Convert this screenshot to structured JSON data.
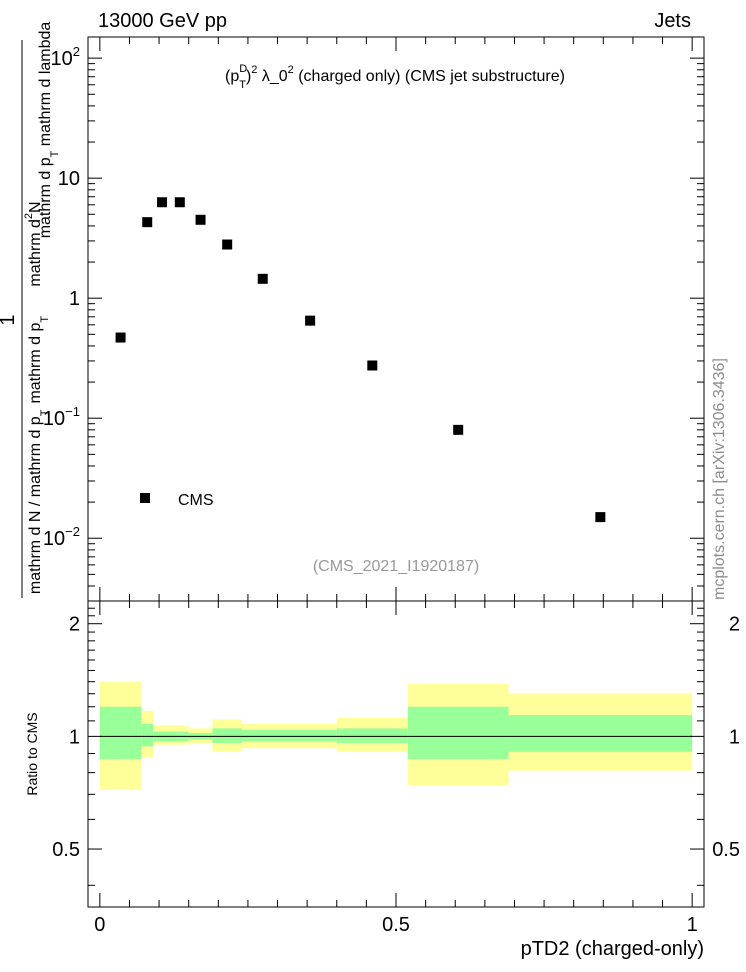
{
  "header": {
    "left": "13000 GeV pp",
    "right": "Jets"
  },
  "side_label": "mcplots.cern.ch [arXiv:1306.3436]",
  "analysis_label": "(CMS_2021_I1920187)",
  "chart_data": [
    {
      "type": "scatter",
      "title_parts": {
        "p": "(p",
        "sup1": "D",
        "sub1": "T",
        "close": ")",
        "sup2": "2",
        "lambda": " λ_0",
        "sup3": "2",
        "rest": " (charged only) (CMS jet substructure)"
      },
      "ylabel_parts": {
        "num": "mathrm d",
        "num_sup": "2",
        "num_rest": "N",
        "den1": "mathrm d p",
        "den1_sub": "T",
        "den2": " mathrm d lambda",
        "left_num": "1",
        "left_den1": "mathrm d N / mathrm d p",
        "left_den1_sub": "T",
        "left_den2": "mathrm d p",
        "left_den2_sub": "T"
      },
      "y_scale": "log",
      "ylim": [
        0.003,
        150
      ],
      "xlim": [
        -0.02,
        1.02
      ],
      "y_ticks": [
        {
          "value": 100,
          "base": "10",
          "exp": "2"
        },
        {
          "value": 10,
          "label": "10"
        },
        {
          "value": 1,
          "label": "1"
        },
        {
          "value": 0.1,
          "base": "10",
          "exp": "−1"
        },
        {
          "value": 0.01,
          "base": "10",
          "exp": "−2"
        }
      ],
      "legend": {
        "entries": [
          "CMS"
        ],
        "placement": "bottom-left"
      },
      "series": [
        {
          "name": "CMS",
          "marker": "square",
          "x": [
            0.035,
            0.08,
            0.105,
            0.135,
            0.17,
            0.215,
            0.275,
            0.355,
            0.46,
            0.605,
            0.845
          ],
          "y": [
            0.47,
            4.3,
            6.3,
            6.3,
            4.5,
            2.8,
            1.45,
            0.65,
            0.275,
            0.08,
            0.015
          ]
        }
      ]
    },
    {
      "type": "area",
      "ylabel": "Ratio to CMS",
      "xlabel": "pTD2 (charged-only)",
      "xlim": [
        -0.02,
        1.02
      ],
      "ylim": [
        0.35,
        2.3
      ],
      "x_ticks": [
        {
          "value": 0,
          "label": "0"
        },
        {
          "value": 0.5,
          "label": "0.5"
        },
        {
          "value": 1,
          "label": "1"
        }
      ],
      "y_ticks": [
        {
          "value": 2,
          "label": "2"
        },
        {
          "value": 1,
          "label": "1"
        },
        {
          "value": 0.5,
          "label": "0.5"
        }
      ],
      "reference_line": 1,
      "bands": {
        "bins": [
          {
            "x0": 0.0,
            "x1": 0.07,
            "stat_lo": 0.87,
            "stat_hi": 1.2,
            "tot_lo": 0.72,
            "tot_hi": 1.4
          },
          {
            "x0": 0.07,
            "x1": 0.09,
            "stat_lo": 0.94,
            "stat_hi": 1.08,
            "tot_lo": 0.88,
            "tot_hi": 1.17
          },
          {
            "x0": 0.09,
            "x1": 0.15,
            "stat_lo": 0.97,
            "stat_hi": 1.03,
            "tot_lo": 0.95,
            "tot_hi": 1.07
          },
          {
            "x0": 0.15,
            "x1": 0.19,
            "stat_lo": 0.98,
            "stat_hi": 1.02,
            "tot_lo": 0.96,
            "tot_hi": 1.05
          },
          {
            "x0": 0.19,
            "x1": 0.24,
            "stat_lo": 0.96,
            "stat_hi": 1.05,
            "tot_lo": 0.91,
            "tot_hi": 1.11
          },
          {
            "x0": 0.24,
            "x1": 0.4,
            "stat_lo": 0.97,
            "stat_hi": 1.04,
            "tot_lo": 0.93,
            "tot_hi": 1.08
          },
          {
            "x0": 0.4,
            "x1": 0.52,
            "stat_lo": 0.96,
            "stat_hi": 1.05,
            "tot_lo": 0.91,
            "tot_hi": 1.12
          },
          {
            "x0": 0.52,
            "x1": 0.69,
            "stat_lo": 0.87,
            "stat_hi": 1.2,
            "tot_lo": 0.74,
            "tot_hi": 1.38
          },
          {
            "x0": 0.69,
            "x1": 1.0,
            "stat_lo": 0.91,
            "stat_hi": 1.14,
            "tot_lo": 0.81,
            "tot_hi": 1.3
          }
        ],
        "stat_color": "#99ff99",
        "total_color": "#ffff99"
      }
    }
  ]
}
